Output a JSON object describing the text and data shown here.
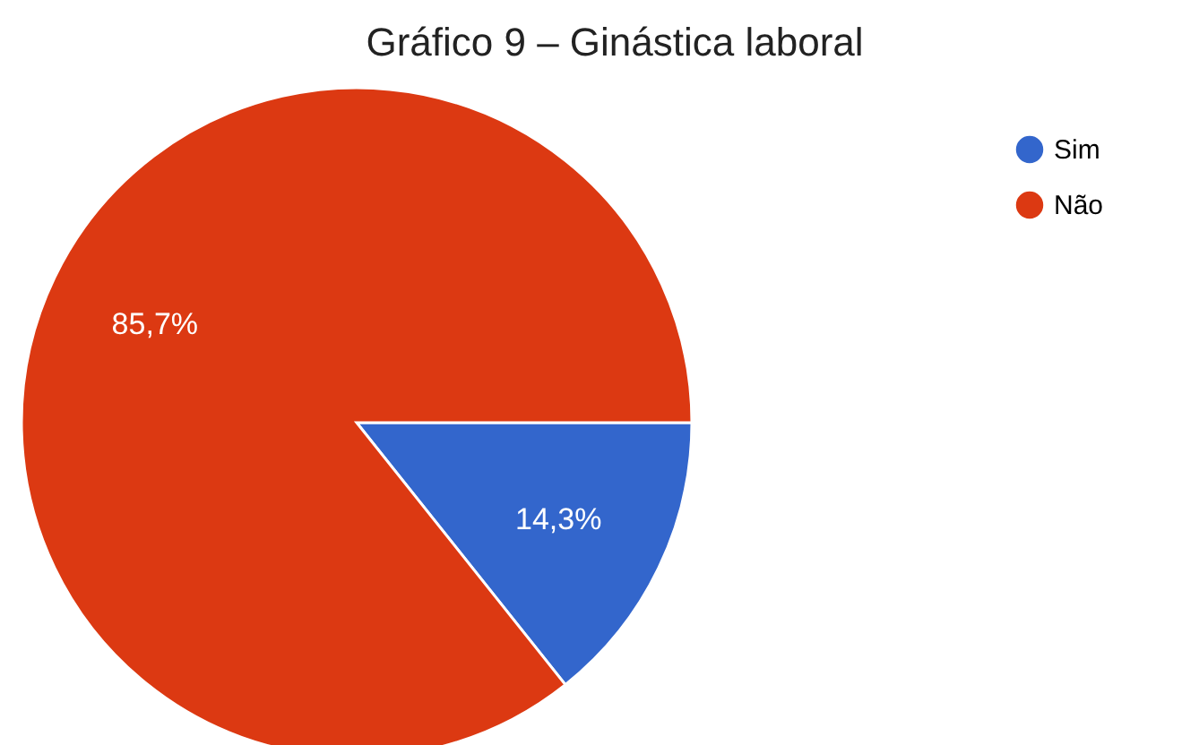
{
  "chart_data": {
    "type": "pie",
    "title": "Gráfico 9 – Ginástica laboral",
    "categories": [
      "Sim",
      "Não"
    ],
    "values": [
      14.3,
      85.7
    ],
    "colors": [
      "#3366cc",
      "#dc3912"
    ],
    "value_labels": [
      "14,3%",
      "85,7%"
    ],
    "legend": "top right"
  }
}
